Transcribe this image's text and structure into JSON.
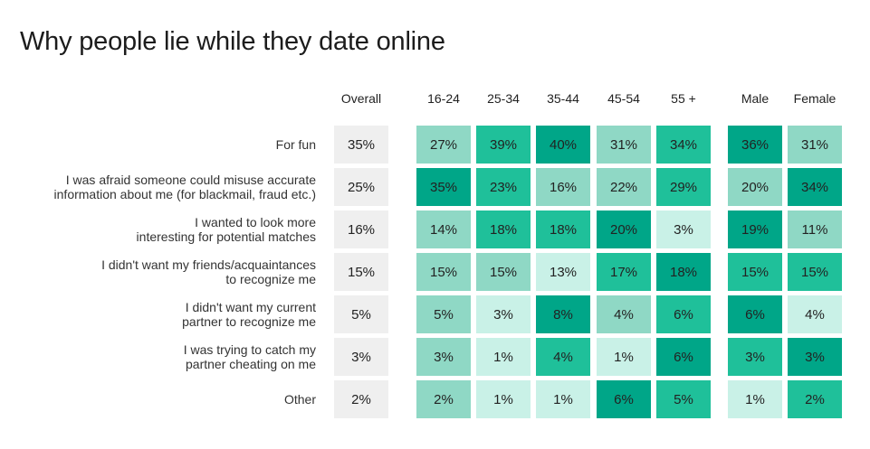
{
  "chart_data": {
    "type": "heatmap",
    "title": "Why people lie while they date online",
    "columns": [
      "Overall",
      "16-24",
      "25-34",
      "35-44",
      "45-54",
      "55 +",
      "Male",
      "Female"
    ],
    "column_groups": [
      [
        "Overall"
      ],
      [
        "16-24",
        "25-34",
        "35-44",
        "45-54",
        "55 +"
      ],
      [
        "Male",
        "Female"
      ]
    ],
    "rows": [
      [
        "For fun"
      ],
      [
        "I was afraid someone could misuse accurate",
        "information about me (for blackmail, fraud etc.)"
      ],
      [
        "I wanted to look more",
        "interesting for potential matches"
      ],
      [
        "I didn't want my friends/acquaintances",
        "to recognize me"
      ],
      [
        "I didn't want my current",
        "partner to recognize me"
      ],
      [
        "I was trying to catch my",
        "partner cheating on me"
      ],
      [
        "Other"
      ]
    ],
    "values": [
      [
        35,
        27,
        39,
        40,
        31,
        34,
        36,
        31
      ],
      [
        25,
        35,
        23,
        16,
        22,
        29,
        20,
        34
      ],
      [
        16,
        14,
        18,
        18,
        20,
        3,
        19,
        11
      ],
      [
        15,
        15,
        15,
        13,
        17,
        18,
        15,
        15
      ],
      [
        5,
        5,
        3,
        8,
        4,
        6,
        6,
        4
      ],
      [
        3,
        3,
        1,
        4,
        1,
        6,
        3,
        3
      ],
      [
        2,
        2,
        1,
        1,
        6,
        5,
        1,
        2
      ]
    ],
    "value_suffix": "%",
    "shade_levels": [
      [
        0,
        1,
        2,
        3,
        1,
        2,
        3,
        1
      ],
      [
        0,
        3,
        2,
        1,
        1,
        2,
        1,
        3
      ],
      [
        0,
        1,
        2,
        2,
        3,
        0,
        3,
        1
      ],
      [
        0,
        1,
        1,
        0,
        2,
        3,
        2,
        2
      ],
      [
        0,
        1,
        0,
        3,
        1,
        2,
        3,
        0
      ],
      [
        0,
        1,
        0,
        2,
        0,
        3,
        2,
        3
      ],
      [
        0,
        1,
        0,
        0,
        3,
        2,
        0,
        2
      ]
    ],
    "colors": {
      "overall_cell": "#efefef",
      "shade": [
        "#c9f1e7",
        "#8fd8c5",
        "#1fc09a",
        "#00a688"
      ]
    }
  }
}
